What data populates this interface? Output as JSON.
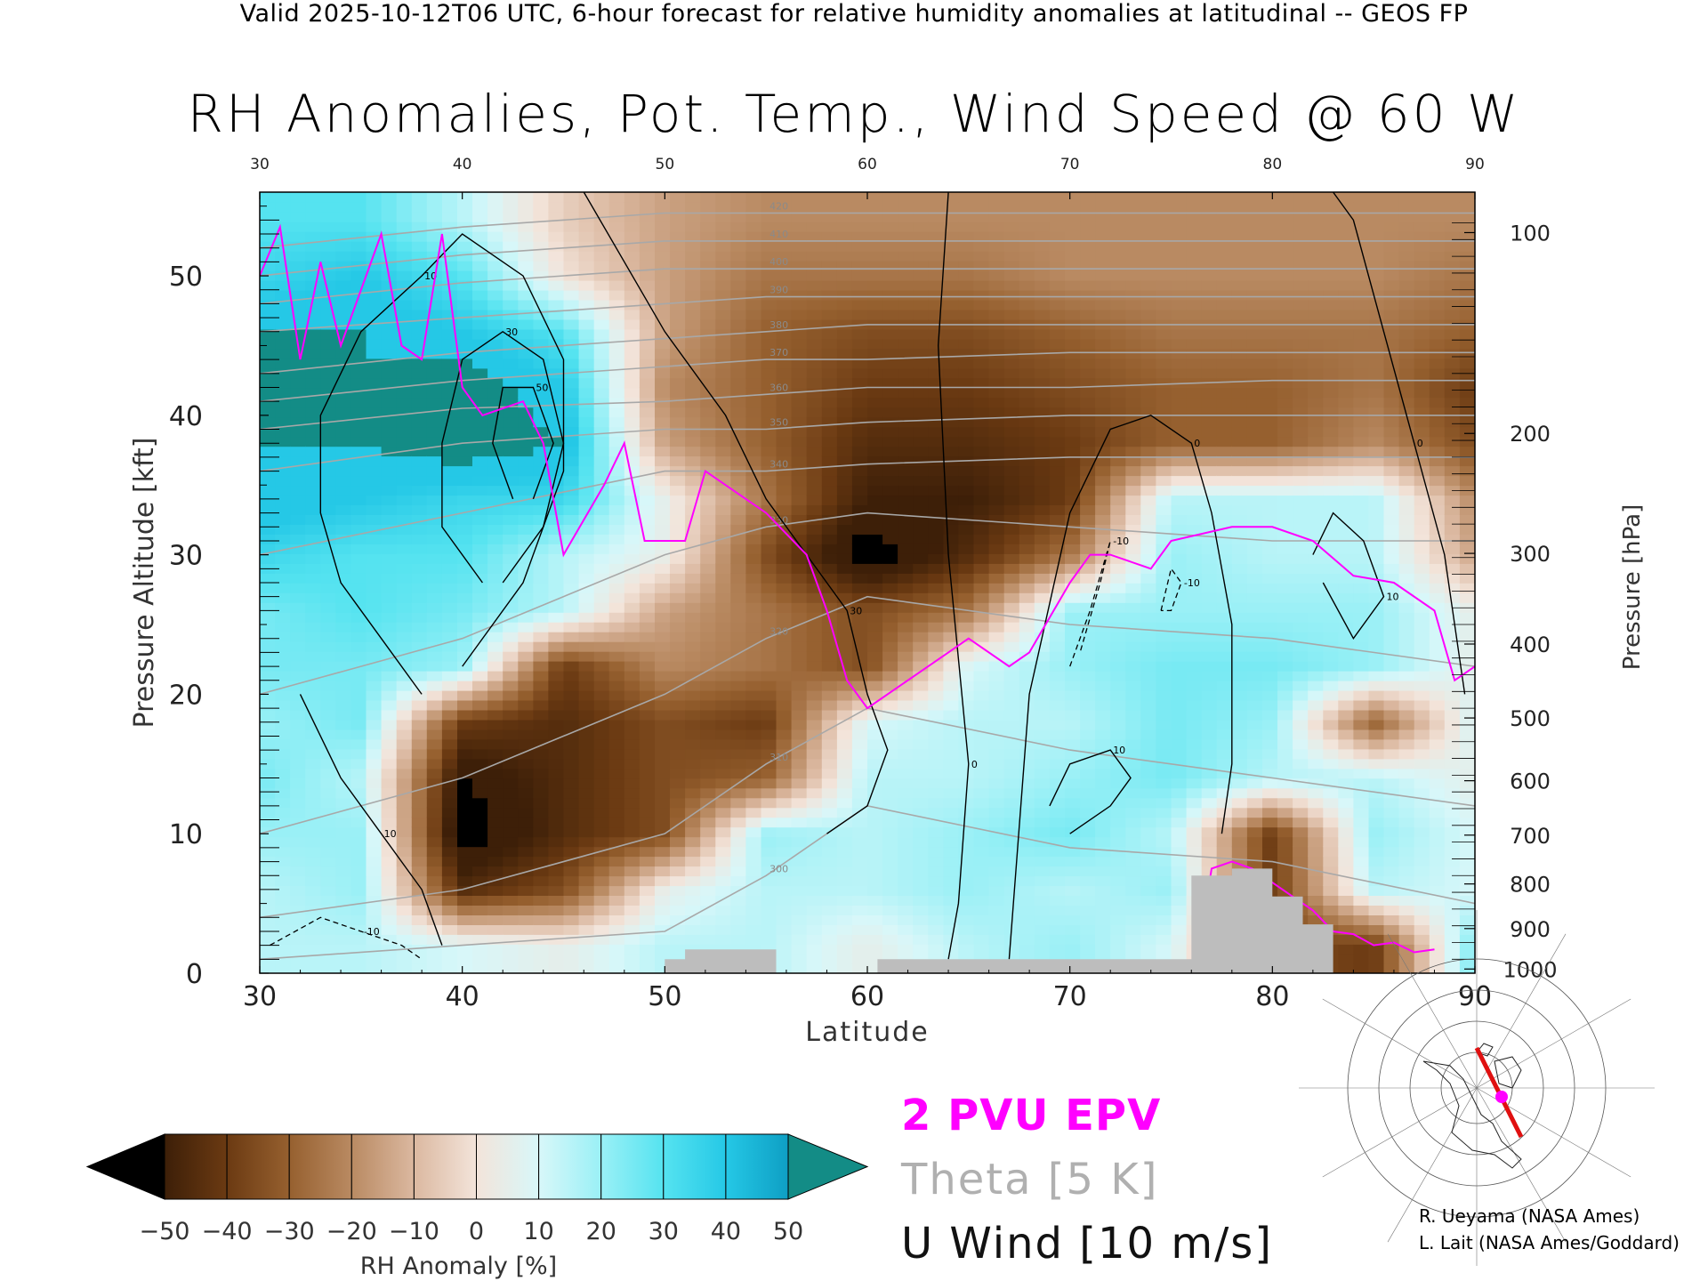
{
  "header": {
    "subtitle": "Valid 2025-10-12T06 UTC, 6-hour forecast for relative humidity anomalies at latitudinal -- GEOS FP",
    "title": "RH Anomalies, Pot. Temp., Wind Speed @ 60 W"
  },
  "legend": {
    "epv": "2 PVU EPV",
    "theta": "Theta [5 K]",
    "uwind": "U Wind [10 m/s]"
  },
  "credits": {
    "line1": "R. Ueyama (NASA Ames)",
    "line2": "L. Lait (NASA Ames/Goddard)"
  },
  "colors": {
    "epv": "#ff00ff",
    "theta": "#a8a8a8",
    "uwind": "#000000",
    "terrain": "#bdbdbd"
  },
  "chart_data": {
    "type": "heatmap",
    "title": "RH Anomalies, Pot. Temp., Wind Speed @ 60 W",
    "xlabel": "Latitude",
    "ylabel": "Pressure Altitude [kft]",
    "y2label": "Pressure [hPa]",
    "xlim": [
      30,
      90
    ],
    "ylim": [
      0,
      56
    ],
    "x_ticks": [
      "30",
      "40",
      "50",
      "60",
      "70",
      "80",
      "90"
    ],
    "y_ticks": [
      "0",
      "10",
      "20",
      "30",
      "40",
      "50"
    ],
    "y_tick_values": [
      0,
      10,
      20,
      30,
      40,
      50
    ],
    "pressure_ticks": [
      {
        "label": "100",
        "kft": 53.1
      },
      {
        "label": "200",
        "kft": 38.7
      },
      {
        "label": "300",
        "kft": 30.1
      },
      {
        "label": "400",
        "kft": 23.6
      },
      {
        "label": "500",
        "kft": 18.3
      },
      {
        "label": "600",
        "kft": 13.8
      },
      {
        "label": "700",
        "kft": 9.9
      },
      {
        "label": "800",
        "kft": 6.4
      },
      {
        "label": "900",
        "kft": 3.2
      },
      {
        "label": "1000",
        "kft": 0.3
      }
    ],
    "colorbar": {
      "label": "RH Anomaly [%]",
      "tick_labels": [
        "-50",
        "-40",
        "-30",
        "-20",
        "-10",
        "0",
        "10",
        "20",
        "30",
        "40",
        "50"
      ],
      "levels": [
        -50,
        -40,
        -30,
        -20,
        -10,
        0,
        10,
        20,
        30,
        40,
        50
      ],
      "colors": [
        "#3d1f08",
        "#6b3a12",
        "#96602f",
        "#b98a62",
        "#dbb8a0",
        "#f3e4da",
        "#d8f7f9",
        "#9af0f6",
        "#55e3f0",
        "#25c8e6",
        "#0e9fc4",
        "#0b7f86"
      ],
      "under_color": "#000000",
      "over_color": "#138c86"
    },
    "rh_anomaly_grid": {
      "lat": [
        30,
        35,
        40,
        45,
        50,
        55,
        60,
        65,
        70,
        75,
        80,
        85,
        90
      ],
      "kft": [
        2,
        6,
        10,
        14,
        18,
        22,
        26,
        30,
        34,
        38,
        42,
        46,
        50,
        54
      ],
      "values": [
        [
          20,
          20,
          15,
          10,
          20,
          20,
          10,
          20,
          25,
          15,
          -30,
          -35,
          30
        ],
        [
          20,
          25,
          -40,
          -30,
          10,
          20,
          20,
          25,
          20,
          25,
          -35,
          20,
          15
        ],
        [
          25,
          25,
          -55,
          -40,
          -30,
          25,
          20,
          25,
          30,
          20,
          -35,
          25,
          15
        ],
        [
          30,
          20,
          -50,
          -40,
          -30,
          -25,
          20,
          20,
          25,
          30,
          20,
          20,
          10
        ],
        [
          25,
          30,
          -35,
          -40,
          -30,
          -35,
          15,
          20,
          20,
          30,
          25,
          -25,
          15
        ],
        [
          30,
          30,
          25,
          -35,
          -15,
          -20,
          -30,
          15,
          25,
          30,
          30,
          25,
          10
        ],
        [
          30,
          35,
          30,
          20,
          -10,
          -20,
          -30,
          -20,
          25,
          25,
          25,
          25,
          10
        ],
        [
          40,
          35,
          35,
          20,
          10,
          -30,
          -55,
          -40,
          -20,
          25,
          20,
          20,
          -10
        ],
        [
          50,
          45,
          40,
          40,
          10,
          -20,
          -45,
          -45,
          -35,
          20,
          20,
          20,
          -15
        ],
        [
          50,
          50,
          55,
          50,
          -10,
          -25,
          -40,
          -40,
          -35,
          -25,
          -25,
          -15,
          -30
        ],
        [
          55,
          50,
          55,
          45,
          -15,
          -25,
          -35,
          -35,
          -30,
          -25,
          -25,
          -20,
          -35
        ],
        [
          50,
          50,
          45,
          35,
          -10,
          -25,
          -30,
          -30,
          -25,
          -20,
          -20,
          -20,
          -25
        ],
        [
          40,
          45,
          35,
          5,
          -10,
          -20,
          -20,
          -20,
          -15,
          -15,
          -15,
          -15,
          -20
        ],
        [
          35,
          35,
          20,
          0,
          -10,
          -15,
          -15,
          -15,
          -15,
          -15,
          -15,
          -15,
          -15
        ]
      ]
    },
    "epv_2pvu_line": {
      "lat": [
        30,
        31,
        32,
        33,
        34,
        36,
        37,
        38,
        39,
        40,
        41,
        43,
        44,
        45,
        47,
        48,
        49,
        51,
        52,
        54,
        55,
        57,
        58,
        59,
        60,
        62,
        64,
        65,
        67,
        68,
        70,
        71,
        72,
        74,
        75,
        78,
        80,
        82,
        84,
        86,
        88,
        89,
        90
      ],
      "kft": [
        50,
        53.5,
        44,
        51,
        45,
        53,
        45,
        44,
        53,
        42,
        40,
        41,
        38,
        30,
        35,
        38,
        31,
        31,
        36,
        34,
        33,
        30,
        26,
        21,
        19,
        21,
        23,
        24,
        22,
        23,
        28,
        30,
        30,
        29,
        31,
        32,
        32,
        31,
        28.5,
        28,
        26,
        21,
        22
      ]
    },
    "epv_lower_line": {
      "lat": [
        76.5,
        77,
        78,
        79,
        80,
        81,
        82,
        83,
        84,
        85,
        86,
        87,
        88
      ],
      "kft": [
        3,
        7.5,
        8,
        7.5,
        6.5,
        5.5,
        4.5,
        3,
        2.8,
        2,
        2.2,
        1.5,
        1.7
      ]
    },
    "theta_levels": [
      "300",
      "310",
      "320",
      "330",
      "340",
      "350",
      "360",
      "370",
      "380",
      "390",
      "400",
      "410",
      "420"
    ],
    "theta_lines": [
      {
        "level": 300,
        "lat": [
          30,
          40,
          50,
          55,
          60,
          70,
          80,
          90
        ],
        "kft": [
          1,
          2,
          3,
          7,
          12,
          9,
          8,
          5
        ]
      },
      {
        "level": 310,
        "lat": [
          30,
          40,
          50,
          55,
          60,
          70,
          80,
          90
        ],
        "kft": [
          4,
          6,
          10,
          15,
          19,
          16,
          14,
          12
        ]
      },
      {
        "level": 320,
        "lat": [
          30,
          40,
          50,
          55,
          60,
          70,
          80,
          90
        ],
        "kft": [
          10,
          14,
          20,
          24,
          27,
          25,
          24,
          22
        ]
      },
      {
        "level": 330,
        "lat": [
          30,
          40,
          50,
          55,
          60,
          70,
          80,
          90
        ],
        "kft": [
          20,
          24,
          30,
          32,
          33,
          32,
          31,
          31
        ]
      },
      {
        "level": 340,
        "lat": [
          30,
          40,
          50,
          55,
          60,
          70,
          80,
          90
        ],
        "kft": [
          30,
          33,
          36,
          36,
          36.5,
          37,
          37,
          37
        ]
      },
      {
        "level": 350,
        "lat": [
          30,
          40,
          50,
          55,
          60,
          70,
          80,
          90
        ],
        "kft": [
          36,
          38,
          39,
          39,
          39.5,
          40,
          40,
          40
        ]
      },
      {
        "level": 360,
        "lat": [
          30,
          40,
          50,
          55,
          60,
          70,
          80,
          90
        ],
        "kft": [
          39,
          40.5,
          41,
          41.5,
          42,
          42,
          42.5,
          42.5
        ]
      },
      {
        "level": 370,
        "lat": [
          30,
          40,
          50,
          55,
          60,
          70,
          80,
          90
        ],
        "kft": [
          41,
          42.5,
          43.5,
          44,
          44,
          44.5,
          44.5,
          44.5
        ]
      },
      {
        "level": 380,
        "lat": [
          30,
          40,
          50,
          55,
          60,
          70,
          80,
          90
        ],
        "kft": [
          43,
          44.5,
          45.5,
          46,
          46.5,
          46.5,
          46.5,
          46.5
        ]
      },
      {
        "level": 390,
        "lat": [
          30,
          40,
          50,
          55,
          60,
          70,
          80,
          90
        ],
        "kft": [
          46,
          47,
          48,
          48.5,
          48.5,
          48.5,
          48.5,
          48.5
        ]
      },
      {
        "level": 400,
        "lat": [
          30,
          40,
          50,
          55,
          60,
          70,
          80,
          90
        ],
        "kft": [
          48,
          49.5,
          50.5,
          50.5,
          50.5,
          50.5,
          50.5,
          50.5
        ]
      },
      {
        "level": 410,
        "lat": [
          30,
          40,
          50,
          55,
          60,
          70,
          80,
          90
        ],
        "kft": [
          50,
          51.5,
          52.5,
          52.5,
          52.5,
          52.5,
          52.5,
          52.5
        ]
      },
      {
        "level": 420,
        "lat": [
          30,
          40,
          50,
          55,
          60,
          70,
          80,
          90
        ],
        "kft": [
          52,
          53.5,
          54.5,
          54.5,
          54.5,
          54.5,
          54.5,
          54.5
        ]
      }
    ],
    "wind_contours": [
      {
        "label": "10",
        "lat": [
          38,
          36,
          34,
          33,
          33,
          35,
          38,
          40,
          43,
          45,
          45,
          43,
          40
        ],
        "kft": [
          20,
          24,
          28,
          33,
          40,
          46,
          50,
          53,
          50,
          44,
          36,
          28,
          22
        ]
      },
      {
        "label": "30",
        "lat": [
          41,
          39,
          39,
          40,
          42,
          44,
          45,
          44,
          42
        ],
        "kft": [
          28,
          32,
          38,
          44,
          46,
          44,
          38,
          32,
          28
        ]
      },
      {
        "label": "50",
        "lat": [
          42.5,
          41.5,
          42,
          43.5,
          44.5,
          43.5
        ],
        "kft": [
          34,
          38,
          42,
          42,
          38,
          34
        ]
      },
      {
        "label": "30",
        "lat": [
          46,
          50,
          53,
          55,
          57,
          59,
          60,
          61,
          60,
          58
        ],
        "kft": [
          56,
          46,
          40,
          34,
          30,
          26,
          20,
          16,
          12,
          10
        ]
      },
      {
        "label": "0",
        "lat": [
          64,
          63.5,
          64,
          65,
          64.5,
          64
        ],
        "kft": [
          56,
          45,
          30,
          15,
          5,
          1
        ]
      },
      {
        "label": "0",
        "lat": [
          67,
          68,
          70,
          72,
          74,
          76,
          77,
          78,
          78,
          77.5
        ],
        "kft": [
          1,
          20,
          33,
          39,
          40,
          38,
          33,
          25,
          15,
          10
        ]
      },
      {
        "label": "0",
        "lat": [
          83,
          84,
          85.5,
          87,
          88.5,
          89.5
        ],
        "kft": [
          56,
          54,
          46,
          38,
          30,
          20
        ]
      },
      {
        "label": "10",
        "lat": [
          82,
          83,
          84.5,
          85.5,
          84,
          82.5
        ],
        "kft": [
          30,
          33,
          31,
          27,
          24,
          28
        ]
      },
      {
        "label": "10",
        "lat": [
          32,
          34,
          36,
          38,
          39
        ],
        "kft": [
          20,
          14,
          10,
          6,
          2
        ]
      },
      {
        "label": "10",
        "lat": [
          70,
          72,
          73,
          72,
          70,
          69
        ],
        "kft": [
          10,
          12,
          14,
          16,
          15,
          12
        ]
      }
    ],
    "dashed_contours": [
      {
        "label": "-10",
        "lat": [
          70,
          71,
          72,
          71.5,
          70.5
        ],
        "kft": [
          22,
          26,
          31,
          28,
          23
        ]
      },
      {
        "label": "-10",
        "lat": [
          74.5,
          75,
          75.5,
          75,
          74.5
        ],
        "kft": [
          26,
          29,
          28,
          26,
          26
        ]
      },
      {
        "label": "-10",
        "lat": [
          30.5,
          33,
          35,
          37,
          38
        ],
        "kft": [
          2,
          4,
          3,
          2,
          1
        ]
      }
    ],
    "terrain": {
      "lat": [
        30,
        50,
        50,
        51,
        51,
        55.5,
        55.5,
        60,
        60,
        60.5,
        60.5,
        76,
        76,
        78,
        78,
        80,
        80,
        81.5,
        81.5,
        83,
        83,
        90
      ],
      "kft": [
        0,
        0,
        1,
        1,
        1.7,
        1.7,
        0,
        0,
        0,
        0,
        1,
        1,
        7,
        7,
        7.5,
        7.5,
        5.5,
        5.5,
        3.5,
        3.5,
        0,
        0
      ]
    }
  },
  "inset_map": {
    "track_color": "#e01010",
    "point_color": "#ff00ff"
  }
}
